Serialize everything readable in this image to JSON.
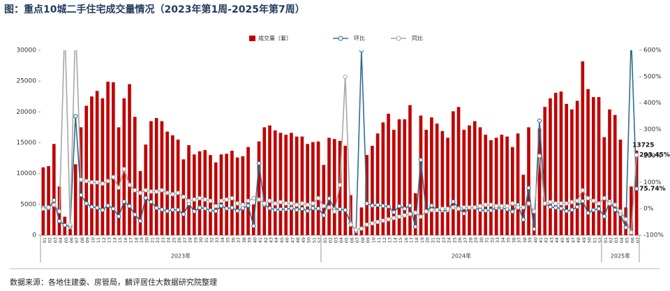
{
  "chart_data": {
    "type": "bar-line",
    "title": "图：重点10城二手住宅成交量情况（2023年第1周-2025年第7周）",
    "source": "数据来源：各地住建委、房管局，麟评居住大数据研究院整理",
    "categories": [
      "01",
      "02",
      "03",
      "04",
      "05",
      "06",
      "07",
      "08",
      "09",
      "10",
      "11",
      "12",
      "13",
      "14",
      "15",
      "16",
      "17",
      "18",
      "19",
      "20",
      "21",
      "22",
      "23",
      "24",
      "25",
      "26",
      "27",
      "28",
      "29",
      "30",
      "31",
      "32",
      "33",
      "34",
      "35",
      "36",
      "37",
      "38",
      "39",
      "40",
      "41",
      "42",
      "43",
      "44",
      "45",
      "46",
      "47",
      "48",
      "49",
      "50",
      "51",
      "52",
      "01",
      "02",
      "03",
      "04",
      "05",
      "06",
      "07",
      "08",
      "09",
      "10",
      "11",
      "12",
      "13",
      "14",
      "15",
      "16",
      "17",
      "18",
      "19",
      "20",
      "21",
      "22",
      "23",
      "24",
      "25",
      "26",
      "27",
      "28",
      "29",
      "30",
      "31",
      "32",
      "33",
      "34",
      "35",
      "36",
      "37",
      "38",
      "39",
      "40",
      "41",
      "42",
      "43",
      "44",
      "45",
      "46",
      "47",
      "48",
      "49",
      "50",
      "51",
      "52",
      "01",
      "02",
      "03",
      "04",
      "05",
      "06",
      "07"
    ],
    "x_groups": [
      "2023年",
      "2024年",
      "2025年"
    ],
    "series": [
      {
        "name": "成交量（套）",
        "color": "#c00000",
        "values": [
          11000,
          11200,
          14800,
          7900,
          3000,
          1000,
          11500,
          17500,
          21000,
          22500,
          23400,
          22200,
          24900,
          24800,
          17500,
          22200,
          24500,
          19200,
          10400,
          14700,
          18500,
          19000,
          18500,
          16800,
          16200,
          15500,
          12300,
          14600,
          13100,
          13600,
          13800,
          13000,
          11800,
          13100,
          13200,
          13700,
          12600,
          12800,
          14300,
          5000,
          15200,
          17500,
          17800,
          17000,
          16600,
          16300,
          16600,
          16000,
          16000,
          14800,
          15100,
          15200,
          11400,
          15800,
          15600,
          15300,
          14500,
          6500,
          1000,
          4500,
          13000,
          14500,
          16500,
          18300,
          19700,
          17100,
          18800,
          18800,
          21100,
          6800,
          19400,
          17100,
          19100,
          18100,
          16900,
          15800,
          20100,
          20800,
          17100,
          17800,
          18500,
          17500,
          16300,
          15400,
          15800,
          16300,
          16000,
          14300,
          16500,
          9800,
          17500,
          4000,
          17300,
          20800,
          22200,
          23100,
          23300,
          21300,
          20400,
          21800,
          28200,
          23700,
          22400,
          22400,
          15900,
          20400,
          19500,
          15500,
          4500,
          7900,
          13725
        ]
      },
      {
        "name": "环比",
        "color": "#2e6e8e",
        "axis": "y2",
        "values": [
          5,
          2,
          32,
          -47,
          -62,
          -67,
          350,
          52,
          20,
          7,
          4,
          -5,
          12,
          0,
          -29,
          27,
          10,
          -22,
          -46,
          41,
          26,
          3,
          -3,
          -9,
          -4,
          -4,
          -21,
          19,
          -10,
          4,
          1,
          -6,
          -9,
          11,
          1,
          4,
          -8,
          2,
          12,
          -65,
          172,
          15,
          2,
          -4,
          -2,
          -2,
          2,
          -4,
          0,
          -8,
          2,
          1,
          -25,
          39,
          -1,
          -2,
          -5,
          -55,
          -85,
          600,
          20,
          12,
          14,
          11,
          8,
          -13,
          10,
          0,
          12,
          -68,
          185,
          -12,
          12,
          -5,
          -7,
          -7,
          27,
          3,
          -18,
          4,
          4,
          -5,
          -7,
          -6,
          3,
          3,
          -2,
          -11,
          15,
          -41,
          79,
          -77,
          333,
          20,
          7,
          4,
          1,
          -9,
          -4,
          7,
          29,
          -16,
          -5,
          0,
          -29,
          28,
          -4,
          -21,
          -71,
          650,
          75.74
        ]
      },
      {
        "name": "同比",
        "color": "#a6a6a6",
        "axis": "y2",
        "values": [
          0,
          5,
          15,
          -10,
          700,
          -60,
          700,
          110,
          105,
          100,
          100,
          95,
          105,
          120,
          80,
          150,
          90,
          70,
          60,
          70,
          65,
          65,
          70,
          60,
          55,
          60,
          45,
          30,
          35,
          40,
          35,
          30,
          10,
          30,
          35,
          40,
          20,
          15,
          30,
          40,
          35,
          20,
          30,
          20,
          25,
          20,
          20,
          15,
          20,
          15,
          20,
          40,
          10,
          5,
          -10,
          90,
          500,
          -60,
          -80,
          -75,
          -60,
          -55,
          -50,
          -45,
          -40,
          -35,
          -30,
          -25,
          -20,
          -15,
          -30,
          -10,
          -5,
          -5,
          0,
          0,
          5,
          0,
          5,
          5,
          5,
          10,
          15,
          15,
          10,
          10,
          10,
          20,
          5,
          5,
          20,
          -10,
          200,
          20,
          25,
          20,
          20,
          20,
          25,
          30,
          70,
          40,
          30,
          20,
          40,
          20,
          15,
          -10,
          -40,
          -90,
          203.45
        ]
      }
    ],
    "annotations": [
      "13725",
      "203.45%",
      "75.74%"
    ],
    "ylim": [
      0,
      30000
    ],
    "yticks": [
      0,
      5000,
      10000,
      15000,
      20000,
      25000,
      30000
    ],
    "y2lim": [
      -100,
      600
    ],
    "y2ticks": [
      {
        "value": -100,
        "label": "-100%"
      },
      {
        "value": 0,
        "label": "0%"
      },
      {
        "value": 100,
        "label": "100%"
      },
      {
        "value": 200,
        "label": "200%"
      },
      {
        "value": 300,
        "label": "300%"
      },
      {
        "value": 400,
        "label": "400%"
      },
      {
        "value": 500,
        "label": "500%"
      },
      {
        "value": 600,
        "label": "600%"
      }
    ]
  }
}
